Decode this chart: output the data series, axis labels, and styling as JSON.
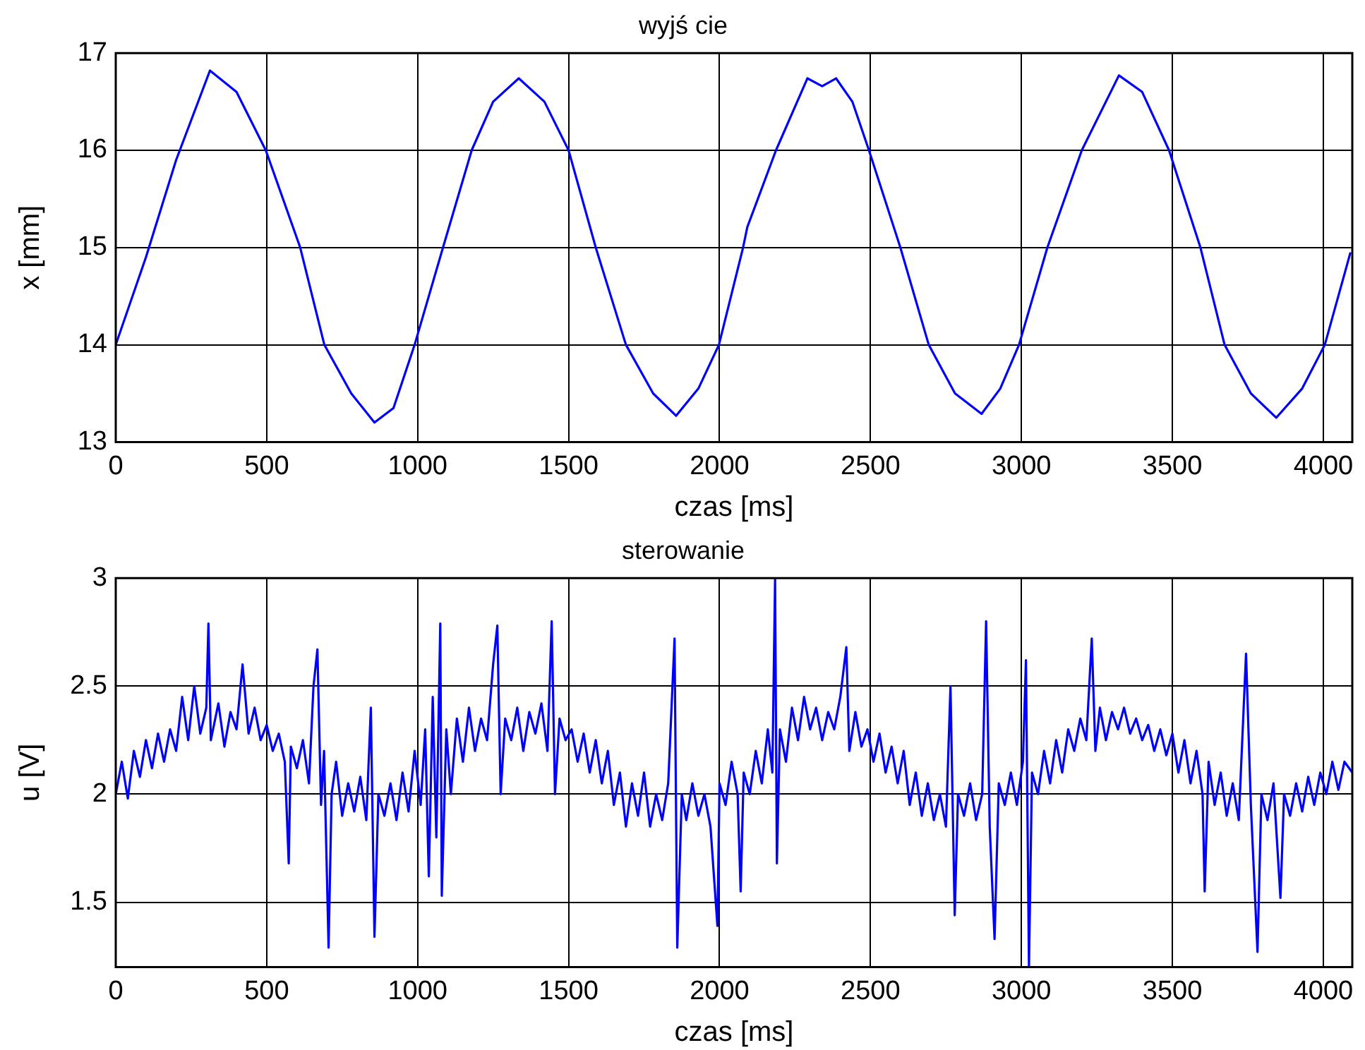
{
  "chart_data": [
    {
      "type": "line",
      "title": "wyjś cie",
      "xlabel": "czas [ms]",
      "ylabel": "x [mm]",
      "xlim": [
        0,
        4096
      ],
      "xticks": [
        0,
        500,
        1000,
        1500,
        2000,
        2500,
        3000,
        3500,
        4000
      ],
      "ylim": [
        13,
        17
      ],
      "yticks": [
        13,
        14,
        15,
        16,
        17
      ],
      "grid": true,
      "marker": "none",
      "line_style": "solid",
      "series": [
        {
          "color": "#0000ff",
          "x": [
            0,
            100,
            200,
            312,
            400,
            497,
            611,
            691,
            780,
            857,
            920,
            990,
            1084,
            1179,
            1250,
            1335,
            1420,
            1500,
            1590,
            1690,
            1780,
            1856,
            1930,
            1998,
            2078,
            2092,
            2187,
            2291,
            2340,
            2386,
            2440,
            2495,
            2599,
            2693,
            2780,
            2868,
            2930,
            2992,
            3086,
            3200,
            3323,
            3400,
            3489,
            3593,
            3673,
            3760,
            3844,
            3930,
            4005,
            4090
          ],
          "values": [
            14.0,
            14.9,
            15.9,
            16.82,
            16.6,
            16.0,
            15.0,
            14.0,
            13.5,
            13.2,
            13.35,
            14.0,
            15.0,
            16.0,
            16.5,
            16.74,
            16.5,
            16.0,
            15.0,
            14.0,
            13.5,
            13.27,
            13.55,
            14.0,
            15.0,
            15.21,
            16.0,
            16.74,
            16.66,
            16.74,
            16.5,
            16.0,
            15.0,
            14.0,
            13.5,
            13.29,
            13.55,
            14.0,
            15.0,
            16.0,
            16.77,
            16.6,
            16.0,
            15.0,
            14.0,
            13.5,
            13.25,
            13.55,
            14.0,
            14.95
          ]
        }
      ]
    },
    {
      "type": "line",
      "title": "sterowanie",
      "xlabel": "czas [ms]",
      "ylabel": "u [V]",
      "xlim": [
        0,
        4096
      ],
      "xticks": [
        0,
        500,
        1000,
        1500,
        2000,
        2500,
        3000,
        3500,
        4000
      ],
      "ylim": [
        1.2,
        3
      ],
      "yticks": [
        1.5,
        2,
        2.5,
        3
      ],
      "grid": true,
      "marker": "none",
      "line_style": "solid",
      "series": [
        {
          "color": "#0000ff",
          "x": [
            0,
            20,
            40,
            60,
            80,
            100,
            120,
            140,
            160,
            180,
            200,
            220,
            240,
            260,
            280,
            300,
            307,
            315,
            340,
            360,
            380,
            400,
            420,
            440,
            460,
            480,
            500,
            520,
            540,
            560,
            573,
            580,
            600,
            620,
            640,
            655,
            668,
            680,
            690,
            705,
            715,
            730,
            750,
            770,
            790,
            810,
            830,
            845,
            857,
            870,
            890,
            910,
            930,
            950,
            970,
            990,
            1010,
            1025,
            1037,
            1050,
            1062,
            1075,
            1080,
            1095,
            1110,
            1130,
            1150,
            1170,
            1190,
            1210,
            1230,
            1250,
            1264,
            1275,
            1290,
            1310,
            1330,
            1350,
            1370,
            1390,
            1410,
            1430,
            1444,
            1455,
            1470,
            1490,
            1510,
            1530,
            1550,
            1570,
            1590,
            1610,
            1630,
            1650,
            1670,
            1690,
            1710,
            1730,
            1750,
            1770,
            1790,
            1810,
            1830,
            1851,
            1860,
            1875,
            1890,
            1910,
            1930,
            1950,
            1970,
            1993,
            2000,
            2020,
            2040,
            2060,
            2070,
            2080,
            2100,
            2120,
            2140,
            2160,
            2175,
            2184,
            2190,
            2200,
            2220,
            2240,
            2260,
            2280,
            2300,
            2320,
            2340,
            2360,
            2380,
            2400,
            2420,
            2430,
            2450,
            2470,
            2490,
            2510,
            2530,
            2550,
            2570,
            2590,
            2610,
            2630,
            2650,
            2670,
            2690,
            2710,
            2730,
            2750,
            2765,
            2779,
            2790,
            2810,
            2830,
            2850,
            2870,
            2883,
            2895,
            2911,
            2925,
            2945,
            2965,
            2985,
            3005,
            3015,
            3025,
            3035,
            3055,
            3075,
            3095,
            3115,
            3135,
            3155,
            3175,
            3195,
            3215,
            3233,
            3245,
            3260,
            3280,
            3300,
            3320,
            3340,
            3360,
            3380,
            3400,
            3420,
            3440,
            3460,
            3480,
            3500,
            3520,
            3540,
            3560,
            3580,
            3600,
            3607,
            3620,
            3640,
            3660,
            3680,
            3700,
            3720,
            3744,
            3760,
            3782,
            3795,
            3815,
            3835,
            3858,
            3870,
            3890,
            3910,
            3930,
            3950,
            3970,
            3990,
            4010,
            4030,
            4050,
            4070,
            4096
          ],
          "values": [
            2.0,
            2.15,
            1.98,
            2.2,
            2.08,
            2.25,
            2.12,
            2.28,
            2.15,
            2.3,
            2.2,
            2.45,
            2.25,
            2.5,
            2.28,
            2.4,
            2.79,
            2.25,
            2.42,
            2.22,
            2.38,
            2.3,
            2.6,
            2.28,
            2.4,
            2.25,
            2.32,
            2.2,
            2.28,
            2.15,
            1.68,
            2.22,
            2.12,
            2.25,
            2.05,
            2.5,
            2.67,
            1.95,
            2.2,
            1.29,
            2.0,
            2.15,
            1.9,
            2.05,
            1.92,
            2.08,
            1.88,
            2.4,
            1.34,
            2.0,
            1.9,
            2.05,
            1.88,
            2.1,
            1.92,
            2.2,
            1.95,
            2.3,
            1.62,
            2.45,
            1.8,
            2.79,
            1.53,
            2.3,
            2.0,
            2.35,
            2.15,
            2.4,
            2.2,
            2.35,
            2.25,
            2.6,
            2.78,
            2.0,
            2.35,
            2.25,
            2.4,
            2.2,
            2.38,
            2.28,
            2.42,
            2.2,
            2.8,
            2.0,
            2.35,
            2.25,
            2.3,
            2.15,
            2.28,
            2.1,
            2.25,
            2.05,
            2.2,
            1.95,
            2.1,
            1.85,
            2.05,
            1.9,
            2.1,
            1.85,
            2.0,
            1.88,
            2.05,
            2.72,
            1.29,
            2.0,
            1.88,
            2.05,
            1.9,
            2.0,
            1.85,
            1.39,
            2.05,
            1.95,
            2.15,
            2.0,
            1.55,
            2.1,
            2.0,
            2.2,
            2.05,
            2.3,
            2.1,
            3.0,
            1.68,
            2.3,
            2.15,
            2.4,
            2.25,
            2.45,
            2.3,
            2.4,
            2.25,
            2.38,
            2.3,
            2.45,
            2.68,
            2.2,
            2.38,
            2.22,
            2.3,
            2.15,
            2.28,
            2.1,
            2.22,
            2.05,
            2.2,
            1.95,
            2.1,
            1.9,
            2.05,
            1.88,
            2.0,
            1.85,
            2.5,
            1.44,
            2.0,
            1.9,
            2.05,
            1.88,
            2.0,
            2.8,
            1.85,
            1.33,
            2.05,
            1.95,
            2.1,
            1.95,
            2.15,
            2.62,
            1.2,
            2.1,
            2.0,
            2.2,
            2.05,
            2.25,
            2.1,
            2.3,
            2.2,
            2.35,
            2.25,
            2.72,
            2.2,
            2.4,
            2.25,
            2.38,
            2.3,
            2.4,
            2.28,
            2.35,
            2.25,
            2.32,
            2.2,
            2.3,
            2.18,
            2.28,
            2.1,
            2.25,
            2.05,
            2.2,
            2.0,
            1.55,
            2.15,
            1.95,
            2.1,
            1.9,
            2.05,
            1.88,
            2.65,
            1.95,
            1.27,
            2.0,
            1.88,
            2.05,
            1.52,
            2.0,
            1.9,
            2.05,
            1.92,
            2.08,
            1.95,
            2.1,
            2.0,
            2.15,
            2.02,
            2.15,
            2.1
          ]
        }
      ]
    }
  ]
}
